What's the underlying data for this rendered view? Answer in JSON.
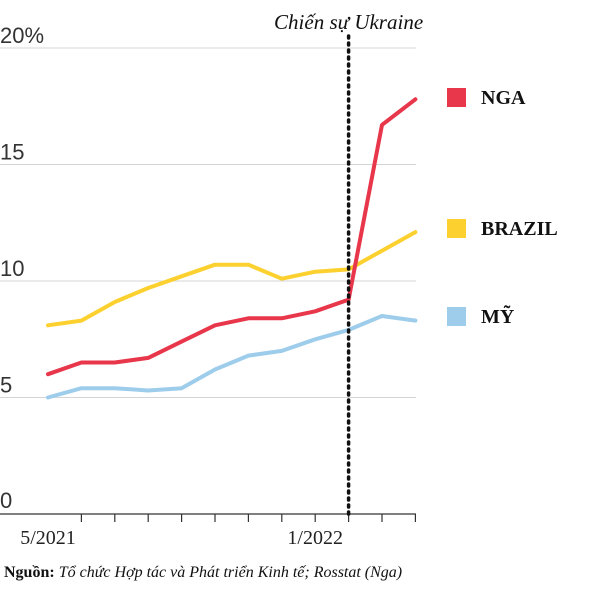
{
  "chart_data": {
    "type": "line",
    "x": [
      "5/2021",
      "6/2021",
      "7/2021",
      "8/2021",
      "9/2021",
      "10/2021",
      "11/2021",
      "12/2021",
      "1/2022",
      "2/2022",
      "3/2022",
      "4/2022"
    ],
    "x_tick_labels": [
      "5/2021",
      "1/2022"
    ],
    "y_tick_labels": [
      "20%",
      "15",
      "10",
      "5",
      "0"
    ],
    "y_ticks": [
      20,
      15,
      10,
      5,
      0
    ],
    "ylim": [
      0,
      20
    ],
    "grid": true,
    "legend_position": "right",
    "series": [
      {
        "name": "NGA",
        "color": "#e8364a",
        "values": [
          6.0,
          6.5,
          6.5,
          6.7,
          7.4,
          8.1,
          8.4,
          8.4,
          8.7,
          9.2,
          16.7,
          17.8
        ]
      },
      {
        "name": "BRAZIL",
        "color": "#fcd12f",
        "values": [
          8.1,
          8.3,
          9.1,
          9.7,
          10.2,
          10.7,
          10.7,
          10.1,
          10.4,
          10.5,
          11.3,
          12.1
        ]
      },
      {
        "name": "MỸ",
        "color": "#9ecdec",
        "values": [
          5.0,
          5.4,
          5.4,
          5.3,
          5.4,
          6.2,
          6.8,
          7.0,
          7.5,
          7.9,
          8.5,
          8.3
        ]
      }
    ],
    "annotation": {
      "text": "Chiến sự Ukraine",
      "x": "2/2022"
    },
    "source_label": "Nguồn:",
    "source_text": "Tổ chức Hợp tác và Phát triển Kinh tế; Rosstat (Nga)"
  }
}
